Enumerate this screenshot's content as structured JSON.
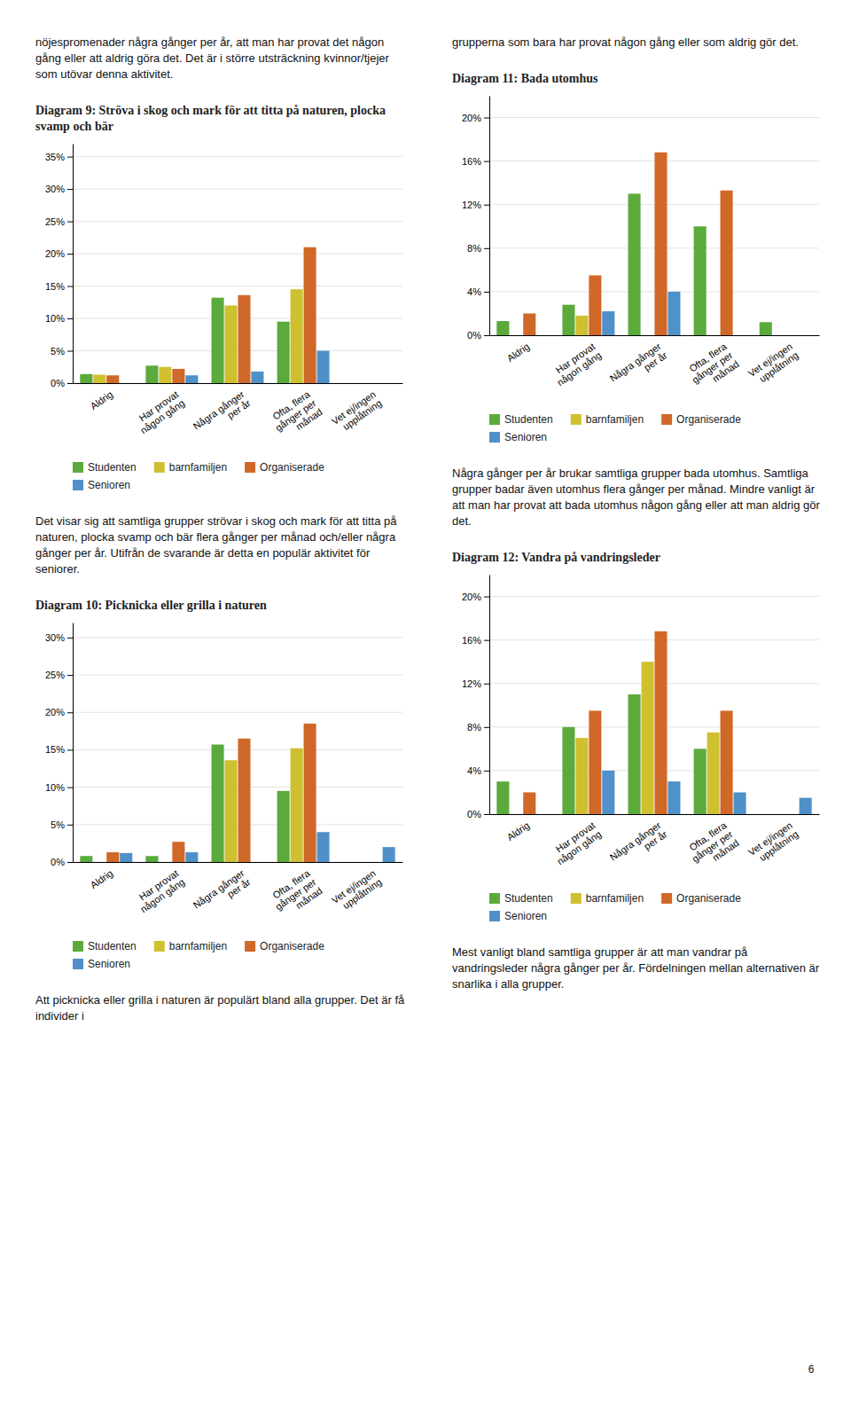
{
  "texts": {
    "col1_top": "nöjespromenader några gånger per år, att man har provat det någon gång eller att aldrig göra det. Det är i större utsträckning kvinnor/tjejer som utövar denna aktivitet.",
    "col2_top": "grupperna som bara har provat någon gång eller som aldrig gör det.",
    "col1_mid": "Det visar sig att samtliga grupper strövar i skog och mark för att titta på naturen, plocka svamp och bär flera gånger per månad och/eller några gånger per år. Utifrån de svarande är detta en populär aktivitet för seniorer.",
    "col2_mid": "Några gånger per år brukar samtliga grupper bada utomhus. Samtliga grupper badar även utomhus flera gånger per månad. Mindre vanligt är att man har provat att bada utomhus någon gång eller att man aldrig gör det.",
    "col1_bot": "Att picknicka eller grilla i naturen är populärt bland alla grupper. Det är få individer i",
    "col2_bot": "Mest vanligt bland samtliga grupper är att man vandrar på vandringsleder några gånger per år. Fördelningen mellan alternativen är snarlika i alla grupper.",
    "page_num": "6"
  },
  "chart_data": [
    {
      "type": "bar",
      "title": "Diagram 9: Ströva i skog och mark för att titta på naturen, plocka svamp och bär",
      "categories": [
        "Aldrig",
        "Har provat\nnågon gång",
        "Några gånger\nper år",
        "Ofta, flera\ngånger per\nmånad",
        "Vet ej/ingen\nupplåtning"
      ],
      "series": [
        {
          "name": "Studenten",
          "color": "#5aaa3c",
          "values": [
            0.014,
            0.027,
            0.132,
            0.095,
            0.0
          ]
        },
        {
          "name": "barnfamiljen",
          "color": "#cfc030",
          "values": [
            0.013,
            0.025,
            0.12,
            0.145,
            0.0
          ]
        },
        {
          "name": "Organiserade",
          "color": "#d06828",
          "values": [
            0.012,
            0.022,
            0.136,
            0.21,
            0.0
          ]
        },
        {
          "name": "Senioren",
          "color": "#5090c8",
          "values": [
            0.0,
            0.012,
            0.018,
            0.05,
            0.0
          ]
        }
      ],
      "ylim": [
        0,
        0.37
      ],
      "yticks": [
        {
          "value": 0.0,
          "label": "0%"
        },
        {
          "value": 0.05,
          "label": "5%"
        },
        {
          "value": 0.1,
          "label": "10%"
        },
        {
          "value": 0.15,
          "label": "15%"
        },
        {
          "value": 0.2,
          "label": "20%"
        },
        {
          "value": 0.25,
          "label": "25%"
        },
        {
          "value": 0.3,
          "label": "30%"
        },
        {
          "value": 0.35,
          "label": "35%"
        }
      ],
      "grid": true,
      "legend": "bottom"
    },
    {
      "type": "bar",
      "title": "Diagram 10: Picknicka eller grilla i naturen",
      "categories": [
        "Aldrig",
        "Har provat\nnågon gång",
        "Några gånger\nper år",
        "Ofta, flera\ngånger per\nmånad",
        "Vet ej/ingen\nupplåtning"
      ],
      "series": [
        {
          "name": "Studenten",
          "color": "#5aaa3c",
          "values": [
            0.008,
            0.008,
            0.157,
            0.095,
            0.0
          ]
        },
        {
          "name": "barnfamiljen",
          "color": "#cfc030",
          "values": [
            0.0,
            0.0,
            0.136,
            0.152,
            0.0
          ]
        },
        {
          "name": "Organiserade",
          "color": "#d06828",
          "values": [
            0.013,
            0.027,
            0.165,
            0.185,
            0.0
          ]
        },
        {
          "name": "Senioren",
          "color": "#5090c8",
          "values": [
            0.012,
            0.013,
            0.0,
            0.04,
            0.02
          ]
        }
      ],
      "ylim": [
        0,
        0.32
      ],
      "yticks": [
        {
          "value": 0.0,
          "label": "0%"
        },
        {
          "value": 0.05,
          "label": "5%"
        },
        {
          "value": 0.1,
          "label": "10%"
        },
        {
          "value": 0.15,
          "label": "15%"
        },
        {
          "value": 0.2,
          "label": "20%"
        },
        {
          "value": 0.25,
          "label": "25%"
        },
        {
          "value": 0.3,
          "label": "30%"
        }
      ],
      "grid": true,
      "legend": "bottom"
    },
    {
      "type": "bar",
      "title": "Diagram 11: Bada utomhus",
      "categories": [
        "Aldrig",
        "Har provat\nnågon gång",
        "Några gånger\nper år",
        "Ofta, flera\ngånger per\nmånad",
        "Vet ej/ingen\nupplåtning"
      ],
      "series": [
        {
          "name": "Studenten",
          "color": "#5aaa3c",
          "values": [
            0.013,
            0.028,
            0.13,
            0.1,
            0.012
          ]
        },
        {
          "name": "barnfamiljen",
          "color": "#cfc030",
          "values": [
            0.0,
            0.018,
            0.0,
            0.0,
            0.0
          ]
        },
        {
          "name": "Organiserade",
          "color": "#d06828",
          "values": [
            0.02,
            0.055,
            0.168,
            0.133,
            0.0
          ]
        },
        {
          "name": "Senioren",
          "color": "#5090c8",
          "values": [
            0.0,
            0.022,
            0.04,
            0.0,
            0.0
          ]
        }
      ],
      "ylim": [
        0,
        0.22
      ],
      "yticks": [
        {
          "value": 0.0,
          "label": "0%"
        },
        {
          "value": 0.04,
          "label": "4%"
        },
        {
          "value": 0.08,
          "label": "8%"
        },
        {
          "value": 0.12,
          "label": "12%"
        },
        {
          "value": 0.16,
          "label": "16%"
        },
        {
          "value": 0.2,
          "label": "20%"
        }
      ],
      "grid": true,
      "legend": "bottom"
    },
    {
      "type": "bar",
      "title": "Diagram 12: Vandra på vandringsleder",
      "categories": [
        "Aldrig",
        "Har provat\nnågon gång",
        "Några gånger\nper år",
        "Ofta, flera\ngånger per\nmånad",
        "Vet ej/ingen\nupplåtning"
      ],
      "series": [
        {
          "name": "Studenten",
          "color": "#5aaa3c",
          "values": [
            0.03,
            0.08,
            0.11,
            0.06,
            0.0
          ]
        },
        {
          "name": "barnfamiljen",
          "color": "#cfc030",
          "values": [
            0.0,
            0.07,
            0.14,
            0.075,
            0.0
          ]
        },
        {
          "name": "Organiserade",
          "color": "#d06828",
          "values": [
            0.02,
            0.095,
            0.168,
            0.095,
            0.0
          ]
        },
        {
          "name": "Senioren",
          "color": "#5090c8",
          "values": [
            0.0,
            0.04,
            0.03,
            0.02,
            0.015
          ]
        }
      ],
      "ylim": [
        0,
        0.22
      ],
      "yticks": [
        {
          "value": 0.0,
          "label": "0%"
        },
        {
          "value": 0.04,
          "label": "4%"
        },
        {
          "value": 0.08,
          "label": "8%"
        },
        {
          "value": 0.12,
          "label": "12%"
        },
        {
          "value": 0.16,
          "label": "16%"
        },
        {
          "value": 0.2,
          "label": "20%"
        }
      ],
      "grid": true,
      "legend": "bottom"
    }
  ]
}
